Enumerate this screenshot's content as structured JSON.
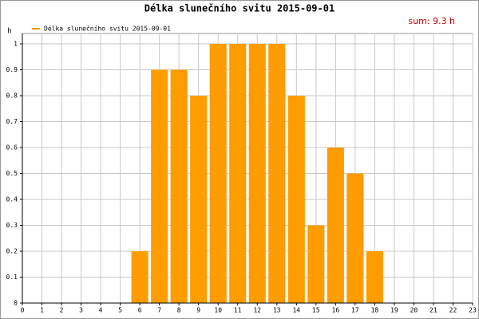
{
  "chart_data": {
    "type": "bar",
    "title": "Délka slunečního svitu 2015-09-01",
    "annotation": "sum: 9.3 h",
    "y_label": "h",
    "legend": "top-left",
    "series": [
      {
        "name": "Délka slunečního svitu 2015-09-01",
        "color": "#ff9c00",
        "values": [
          0,
          0,
          0,
          0,
          0,
          0,
          0.2,
          0.9,
          0.9,
          0.8,
          1,
          1,
          1,
          1,
          0.8,
          0.3,
          0.6,
          0.5,
          0.2,
          0,
          0,
          0,
          0,
          0
        ]
      }
    ],
    "x": [
      0,
      1,
      2,
      3,
      4,
      5,
      6,
      7,
      8,
      9,
      10,
      11,
      12,
      13,
      14,
      15,
      16,
      17,
      18,
      19,
      20,
      21,
      22,
      23
    ],
    "xlim": [
      0,
      23
    ],
    "xticks": [
      0,
      1,
      2,
      3,
      4,
      5,
      6,
      7,
      8,
      9,
      10,
      11,
      12,
      13,
      14,
      15,
      16,
      17,
      18,
      19,
      20,
      21,
      22,
      23
    ],
    "ylim": [
      0,
      1
    ],
    "yticks": [
      0,
      0.1,
      0.2,
      0.3,
      0.4,
      0.5,
      0.6,
      0.7,
      0.8,
      0.9,
      1
    ],
    "grid": true
  }
}
